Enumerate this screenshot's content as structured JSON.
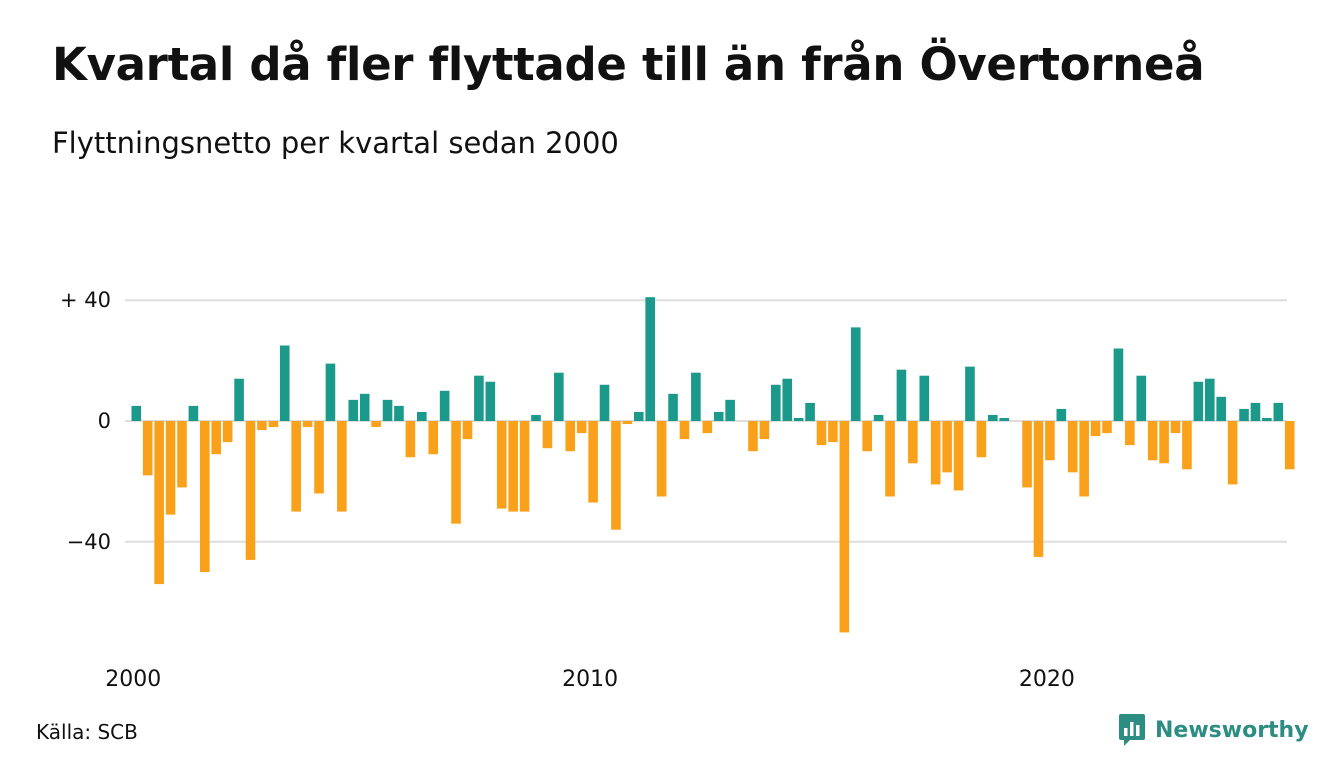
{
  "title": "Kvartal då fler flyttade till än från Övertorneå",
  "subtitle": "Flyttningsnetto per kvartal sedan 2000",
  "source": "Källa: SCB",
  "brand": {
    "name": "Newsworthy",
    "icon": "newsworthy-logo-icon",
    "color": "#2e8d83"
  },
  "colors": {
    "positive": "#1b998b",
    "negative": "#f9a11b",
    "grid": "#dddddd"
  },
  "chart_data": {
    "type": "bar",
    "title": "Kvartal då fler flyttade till än från Övertorneå",
    "subtitle": "Flyttningsnetto per kvartal sedan 2000",
    "xlabel": "",
    "ylabel": "",
    "start": "2000 Q1",
    "frequency": "quarterly",
    "ylim": [
      -72,
      42
    ],
    "yticks": [
      40,
      0,
      -40
    ],
    "ytick_labels": [
      "+ 40",
      "0",
      "−40"
    ],
    "xtick_labels": [
      "2000",
      "2010",
      "2020"
    ],
    "grid": true,
    "values": [
      5,
      -18,
      -54,
      -31,
      -22,
      5,
      -50,
      -11,
      -7,
      14,
      -46,
      -3,
      -2,
      25,
      -30,
      -2,
      -24,
      19,
      -30,
      7,
      9,
      -2,
      7,
      5,
      -12,
      3,
      -11,
      10,
      -34,
      -6,
      15,
      13,
      -29,
      -30,
      -30,
      2,
      -9,
      16,
      -10,
      -4,
      -27,
      12,
      -36,
      -1,
      3,
      41,
      -25,
      9,
      -6,
      16,
      -4,
      3,
      7,
      0,
      -10,
      -6,
      12,
      14,
      1,
      6,
      -8,
      -7,
      -70,
      31,
      -10,
      2,
      -25,
      17,
      -14,
      15,
      -21,
      -17,
      -23,
      18,
      -12,
      2,
      1,
      0,
      -22,
      -45,
      -13,
      4,
      -17,
      -25,
      -5,
      -4,
      24,
      -8,
      15,
      -13,
      -14,
      -4,
      -16,
      13,
      14,
      8,
      -21,
      4,
      6,
      1,
      6,
      -16
    ]
  }
}
